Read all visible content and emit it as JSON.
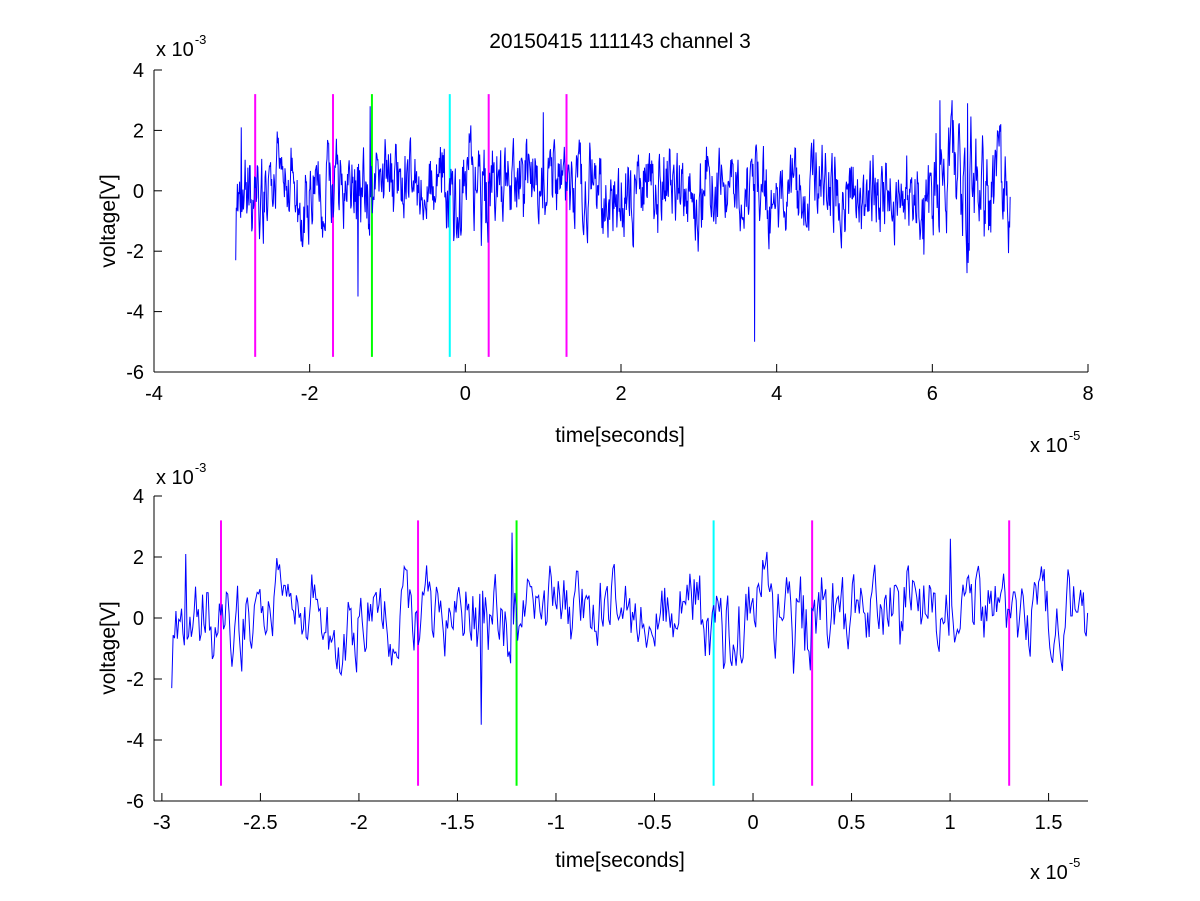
{
  "colors": {
    "signal": "#0000ff",
    "magenta": "#ff00ff",
    "green": "#00ff00",
    "cyan": "#00ffff",
    "axis": "#000000"
  },
  "chart_data": [
    {
      "type": "line",
      "title": "20150415 111143 channel 3",
      "xlabel": "time[seconds]",
      "ylabel": "voltage[V]",
      "x_exponent_label": "x 10",
      "x_exponent": "-5",
      "y_exponent_label": "x 10",
      "y_exponent": "-3",
      "xlim": [
        -4,
        8
      ],
      "ylim": [
        -6,
        4
      ],
      "x_ticks": [
        -4,
        -2,
        0,
        2,
        4,
        6,
        8
      ],
      "x_tick_labels": [
        "-4",
        "-2",
        "0",
        "2",
        "4",
        "6",
        "8"
      ],
      "y_ticks": [
        -6,
        -4,
        -2,
        0,
        2,
        4
      ],
      "y_tick_labels": [
        "-6",
        "-4",
        "-2",
        "0",
        "2",
        "4"
      ],
      "signal_range": {
        "x_start": -2.95,
        "x_end": 7.0,
        "y_min": -5.0,
        "y_max": 3.0
      },
      "vertical_markers": [
        {
          "x": -2.7,
          "y0": -5.5,
          "y1": 3.2,
          "color": "magenta"
        },
        {
          "x": -1.7,
          "y0": -5.5,
          "y1": 3.2,
          "color": "magenta"
        },
        {
          "x": -1.2,
          "y0": -5.5,
          "y1": 3.2,
          "color": "green"
        },
        {
          "x": -0.2,
          "y0": -5.5,
          "y1": 3.2,
          "color": "cyan"
        },
        {
          "x": 0.3,
          "y0": -5.5,
          "y1": 3.2,
          "color": "magenta"
        },
        {
          "x": 1.3,
          "y0": -5.5,
          "y1": 3.2,
          "color": "magenta"
        }
      ],
      "notable_points": [
        {
          "x": -2.95,
          "y": -2.3
        },
        {
          "x": -2.88,
          "y": 2.1
        },
        {
          "x": -1.38,
          "y": -3.5
        },
        {
          "x": -1.2,
          "y": 2.0
        },
        {
          "x": 3.72,
          "y": -5.0
        },
        {
          "x": 6.1,
          "y": 3.0
        },
        {
          "x": 6.45,
          "y": 2.9
        },
        {
          "x": 7.0,
          "y": -0.2
        }
      ]
    },
    {
      "type": "line",
      "title": "",
      "xlabel": "time[seconds]",
      "ylabel": "voltage[V]",
      "x_exponent_label": "x 10",
      "x_exponent": "-5",
      "y_exponent_label": "x 10",
      "y_exponent": "-3",
      "xlim": [
        -3.04,
        1.7
      ],
      "ylim": [
        -6,
        4
      ],
      "x_ticks": [
        -3,
        -2.5,
        -2,
        -1.5,
        -1,
        -0.5,
        0,
        0.5,
        1,
        1.5
      ],
      "x_tick_labels": [
        "-3",
        "-2.5",
        "-2",
        "-1.5",
        "-1",
        "-0.5",
        "0",
        "0.5",
        "1",
        "1.5"
      ],
      "y_ticks": [
        -6,
        -4,
        -2,
        0,
        2,
        4
      ],
      "y_tick_labels": [
        "-6",
        "-4",
        "-2",
        "0",
        "2",
        "4"
      ],
      "signal_range": {
        "x_start": -2.95,
        "x_end": 1.7,
        "y_min": -3.5,
        "y_max": 2.8
      },
      "vertical_markers": [
        {
          "x": -2.7,
          "y0": -5.5,
          "y1": 3.2,
          "color": "magenta"
        },
        {
          "x": -1.7,
          "y0": -5.5,
          "y1": 3.2,
          "color": "magenta"
        },
        {
          "x": -1.2,
          "y0": -5.5,
          "y1": 3.2,
          "color": "green"
        },
        {
          "x": -0.2,
          "y0": -5.5,
          "y1": 3.2,
          "color": "cyan"
        },
        {
          "x": 0.3,
          "y0": -5.5,
          "y1": 3.2,
          "color": "magenta"
        },
        {
          "x": 1.3,
          "y0": -5.5,
          "y1": 3.2,
          "color": "magenta"
        }
      ],
      "notable_points": [
        {
          "x": -2.95,
          "y": -2.3
        },
        {
          "x": -2.88,
          "y": 2.1
        },
        {
          "x": -1.38,
          "y": -3.5
        },
        {
          "x": -1.22,
          "y": 2.8
        },
        {
          "x": 1.0,
          "y": 2.6
        },
        {
          "x": 1.7,
          "y": 0.5
        }
      ]
    }
  ]
}
